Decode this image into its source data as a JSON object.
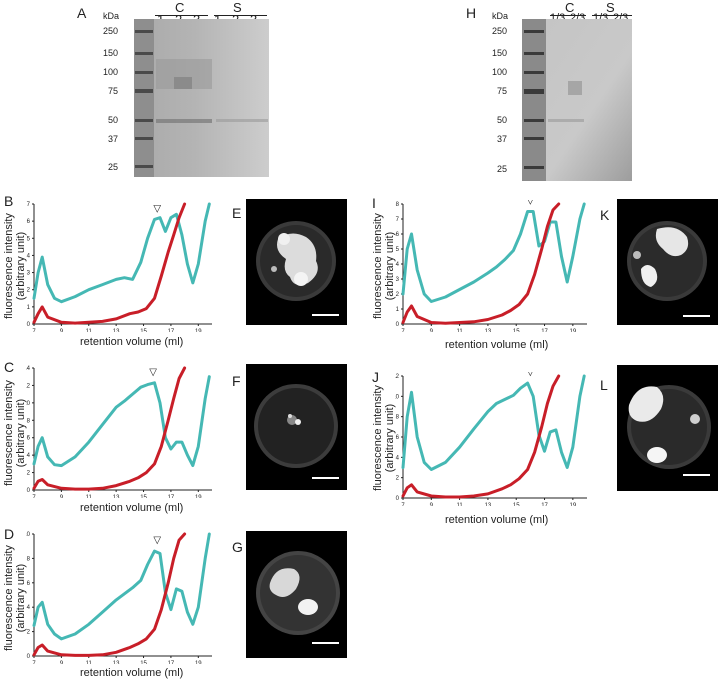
{
  "panel_letters": {
    "A": "A",
    "B": "B",
    "C": "C",
    "D": "D",
    "E": "E",
    "F": "F",
    "G": "G",
    "H": "H",
    "I": "I",
    "J": "J",
    "K": "K",
    "L": "L"
  },
  "gel_A": {
    "unit": "kDa",
    "markers": [
      "250",
      "150",
      "100",
      "75",
      "50",
      "37",
      "25"
    ],
    "group_C": "C",
    "group_S": "S",
    "lanes": [
      "1",
      "2",
      "3",
      "1",
      "2",
      "3"
    ]
  },
  "gel_H": {
    "unit": "kDa",
    "markers": [
      "250",
      "150",
      "100",
      "75",
      "50",
      "37",
      "25"
    ],
    "group_C": "C",
    "group_S": "S",
    "lanes": [
      "1/3",
      "2/3",
      "1/3",
      "2/3"
    ]
  },
  "axis": {
    "ylabel_line1": "fluorescence intensity",
    "ylabel_line2": "(arbitrary unit)",
    "xlabel": "retention volume (ml)",
    "marker_symbol": "▽"
  },
  "colors": {
    "teal": "#45b8b4",
    "red": "#c81e28"
  },
  "scale_bar": "scale bar",
  "chart_data": [
    {
      "panel": "B",
      "type": "line",
      "xticks": [
        "7",
        "9",
        "11",
        "13",
        "15",
        "17",
        "19"
      ],
      "yticks": [
        "0",
        "1",
        "2",
        "3",
        "4",
        "5",
        "6",
        "7"
      ],
      "ylim": [
        0,
        7
      ],
      "xlim": [
        7,
        20
      ],
      "peak_marker_x": 16.0,
      "series": [
        {
          "color": "teal",
          "x": [
            7,
            7.3,
            7.6,
            8,
            8.5,
            9,
            10,
            11,
            12,
            13,
            13.6,
            14.2,
            14.8,
            15.3,
            15.8,
            16.2,
            16.6,
            17,
            17.4,
            17.8,
            18.2,
            18.6,
            19,
            19.5,
            19.8
          ],
          "y": [
            1.5,
            3.0,
            3.9,
            2.3,
            1.5,
            1.3,
            1.6,
            2.0,
            2.3,
            2.6,
            2.7,
            2.6,
            3.6,
            5.0,
            6.1,
            6.2,
            5.4,
            6.2,
            6.4,
            5.2,
            3.5,
            2.4,
            3.5,
            6.0,
            7.0
          ]
        },
        {
          "color": "red",
          "x": [
            7,
            7.3,
            7.6,
            8,
            9,
            10,
            11,
            12,
            13,
            14,
            14.6,
            15.2,
            15.8,
            16.3,
            16.8,
            17.2,
            17.6,
            18
          ],
          "y": [
            0.1,
            0.6,
            1.0,
            0.4,
            0.1,
            0.05,
            0.1,
            0.15,
            0.3,
            0.6,
            0.7,
            0.9,
            1.5,
            2.8,
            4.2,
            5.2,
            6.2,
            7.0
          ]
        }
      ]
    },
    {
      "panel": "C",
      "type": "line",
      "xticks": [
        "7",
        "9",
        "11",
        "13",
        "15",
        "17",
        "19"
      ],
      "yticks": [
        "0",
        "2",
        "4",
        "6",
        "8",
        "10",
        "12",
        "14"
      ],
      "ylim": [
        0,
        14
      ],
      "xlim": [
        7,
        20
      ],
      "peak_marker_x": 15.7,
      "series": [
        {
          "color": "teal",
          "x": [
            7,
            7.3,
            7.6,
            8,
            8.5,
            9,
            10,
            11,
            12,
            13,
            13.6,
            14.2,
            14.8,
            15.3,
            15.8,
            16.2,
            16.6,
            17,
            17.4,
            17.8,
            18.2,
            18.6,
            19,
            19.5,
            19.8
          ],
          "y": [
            3.0,
            5.0,
            6.0,
            3.8,
            2.9,
            2.8,
            3.8,
            5.5,
            7.5,
            9.5,
            10.2,
            11.0,
            11.8,
            12.1,
            12.3,
            10.0,
            6.0,
            4.7,
            5.5,
            5.5,
            4.0,
            2.8,
            5.0,
            10.5,
            13.0
          ]
        },
        {
          "color": "red",
          "x": [
            7,
            7.3,
            7.6,
            8,
            9,
            10,
            11,
            12,
            13,
            14,
            14.6,
            15.2,
            15.8,
            16.3,
            16.8,
            17.2,
            17.6,
            18
          ],
          "y": [
            0.2,
            1.0,
            1.2,
            0.6,
            0.2,
            0.1,
            0.1,
            0.2,
            0.5,
            1.0,
            1.4,
            2.0,
            3.0,
            5.0,
            8.0,
            10.5,
            12.8,
            14.0
          ]
        }
      ]
    },
    {
      "panel": "D",
      "type": "line",
      "xticks": [
        "7",
        "9",
        "11",
        "13",
        "15",
        "17",
        "19"
      ],
      "yticks": [
        "0",
        "2",
        "4",
        "6",
        "8",
        "10"
      ],
      "ylim": [
        0,
        10
      ],
      "xlim": [
        7,
        20
      ],
      "peak_marker_x": 16.0,
      "series": [
        {
          "color": "teal",
          "x": [
            7,
            7.3,
            7.6,
            8,
            8.5,
            9,
            10,
            11,
            12,
            13,
            13.6,
            14.2,
            14.8,
            15.3,
            15.8,
            16.2,
            16.6,
            17,
            17.4,
            17.8,
            18.2,
            18.6,
            19,
            19.5,
            19.8
          ],
          "y": [
            2.5,
            4.0,
            4.4,
            2.6,
            1.8,
            1.4,
            1.8,
            2.6,
            3.6,
            4.6,
            5.1,
            5.6,
            6.2,
            7.5,
            8.6,
            8.4,
            5.2,
            3.8,
            5.5,
            5.3,
            3.6,
            2.6,
            4.0,
            8.0,
            10.0
          ]
        },
        {
          "color": "red",
          "x": [
            7,
            7.3,
            7.6,
            8,
            9,
            10,
            11,
            12,
            13,
            14,
            14.6,
            15.2,
            15.8,
            16.3,
            16.8,
            17.2,
            17.6,
            18
          ],
          "y": [
            0.1,
            0.7,
            0.9,
            0.4,
            0.1,
            0.05,
            0.05,
            0.1,
            0.3,
            0.7,
            1.0,
            1.4,
            2.2,
            3.8,
            6.0,
            8.0,
            9.5,
            10.0
          ]
        }
      ]
    },
    {
      "panel": "I",
      "type": "line",
      "xticks": [
        "7",
        "9",
        "11",
        "13",
        "15",
        "17",
        "19"
      ],
      "yticks": [
        "0",
        "1",
        "2",
        "3",
        "4",
        "5",
        "6",
        "7",
        "8"
      ],
      "ylim": [
        0,
        8
      ],
      "xlim": [
        7,
        20
      ],
      "peak_marker_x": 16.0,
      "series": [
        {
          "color": "teal",
          "x": [
            7,
            7.3,
            7.6,
            8,
            8.5,
            9,
            10,
            11,
            12,
            13,
            13.6,
            14.2,
            14.8,
            15.3,
            15.8,
            16.2,
            16.6,
            17,
            17.4,
            17.8,
            18.2,
            18.6,
            19,
            19.5,
            19.8
          ],
          "y": [
            2.0,
            5.0,
            6.0,
            3.6,
            2.0,
            1.5,
            1.8,
            2.3,
            2.8,
            3.4,
            3.8,
            4.3,
            4.9,
            6.0,
            7.5,
            7.5,
            5.2,
            5.5,
            6.8,
            6.8,
            4.5,
            2.8,
            4.5,
            7.0,
            8.0
          ]
        },
        {
          "color": "red",
          "x": [
            7,
            7.3,
            7.6,
            8,
            9,
            10,
            11,
            12,
            13,
            14,
            14.6,
            15.2,
            15.8,
            16.3,
            16.8,
            17.2,
            17.6,
            18
          ],
          "y": [
            0.1,
            0.8,
            1.2,
            0.5,
            0.1,
            0.05,
            0.1,
            0.15,
            0.3,
            0.6,
            0.9,
            1.3,
            2.0,
            3.3,
            5.0,
            6.5,
            7.6,
            8.0
          ]
        }
      ]
    },
    {
      "panel": "J",
      "type": "line",
      "xticks": [
        "7",
        "9",
        "11",
        "13",
        "15",
        "17",
        "19"
      ],
      "yticks": [
        "0",
        "2",
        "4",
        "6",
        "8",
        "10",
        "12"
      ],
      "ylim": [
        0,
        12
      ],
      "xlim": [
        7,
        20
      ],
      "peak_marker_x": 16.0,
      "series": [
        {
          "color": "teal",
          "x": [
            7,
            7.3,
            7.6,
            8,
            8.5,
            9,
            10,
            11,
            12,
            13,
            13.6,
            14.2,
            14.8,
            15.3,
            15.8,
            16.2,
            16.6,
            17,
            17.4,
            17.8,
            18.2,
            18.6,
            19,
            19.5,
            19.8
          ],
          "y": [
            3.0,
            8.0,
            10.4,
            6.0,
            3.5,
            2.8,
            3.5,
            5.0,
            6.8,
            8.5,
            9.3,
            9.7,
            10.1,
            10.8,
            11.3,
            10.0,
            6.2,
            4.6,
            6.5,
            6.7,
            4.5,
            3.0,
            5.0,
            10.0,
            12.0
          ]
        },
        {
          "color": "red",
          "x": [
            7,
            7.3,
            7.6,
            8,
            9,
            10,
            11,
            12,
            13,
            14,
            14.6,
            15.2,
            15.8,
            16.3,
            16.8,
            17.2,
            17.6,
            18
          ],
          "y": [
            0.2,
            1.0,
            1.3,
            0.6,
            0.2,
            0.1,
            0.1,
            0.2,
            0.4,
            0.9,
            1.3,
            1.9,
            2.8,
            4.5,
            7.0,
            9.3,
            11.0,
            12.0
          ]
        }
      ]
    }
  ]
}
